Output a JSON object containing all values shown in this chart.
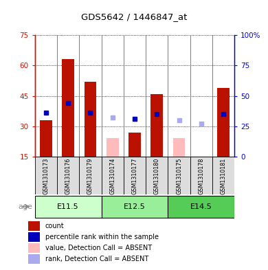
{
  "title": "GDS5642 / 1446847_at",
  "samples": [
    "GSM1310173",
    "GSM1310176",
    "GSM1310179",
    "GSM1310174",
    "GSM1310177",
    "GSM1310180",
    "GSM1310175",
    "GSM1310178",
    "GSM1310181"
  ],
  "age_groups": [
    {
      "label": "E11.5",
      "start": 0,
      "end": 3
    },
    {
      "label": "E12.5",
      "start": 3,
      "end": 6
    },
    {
      "label": "E14.5",
      "start": 6,
      "end": 9
    }
  ],
  "age_group_colors": [
    "#ccffcc",
    "#99ee99",
    "#55cc55"
  ],
  "count_values": [
    33,
    63,
    52,
    null,
    27,
    46,
    null,
    null,
    49
  ],
  "count_absent_values": [
    null,
    null,
    null,
    24,
    null,
    null,
    24,
    14,
    null
  ],
  "percentile_values": [
    36,
    44,
    36,
    null,
    31,
    35,
    null,
    null,
    35
  ],
  "percentile_absent_values": [
    null,
    null,
    null,
    32,
    null,
    null,
    30,
    27,
    null
  ],
  "ylim_left": [
    15,
    75
  ],
  "ylim_right": [
    0,
    100
  ],
  "yticks_left": [
    15,
    30,
    45,
    60,
    75
  ],
  "yticks_right": [
    0,
    25,
    50,
    75,
    100
  ],
  "ytick_labels_left": [
    "15",
    "30",
    "45",
    "60",
    "75"
  ],
  "ytick_labels_right": [
    "0",
    "25",
    "50",
    "75",
    "100%"
  ],
  "bar_color": "#bb1100",
  "bar_absent_color": "#ffbbbb",
  "dot_color": "#0000bb",
  "dot_absent_color": "#aaaaee",
  "legend_items": [
    {
      "color": "#bb1100",
      "label": "count"
    },
    {
      "color": "#0000bb",
      "label": "percentile rank within the sample"
    },
    {
      "color": "#ffbbbb",
      "label": "value, Detection Call = ABSENT"
    },
    {
      "color": "#aaaaee",
      "label": "rank, Detection Call = ABSENT"
    }
  ],
  "bar_width": 0.55,
  "dot_size": 5,
  "sample_box_color": "#dddddd",
  "left_axis_color": "#cc1100",
  "right_axis_color": "#0000cc"
}
